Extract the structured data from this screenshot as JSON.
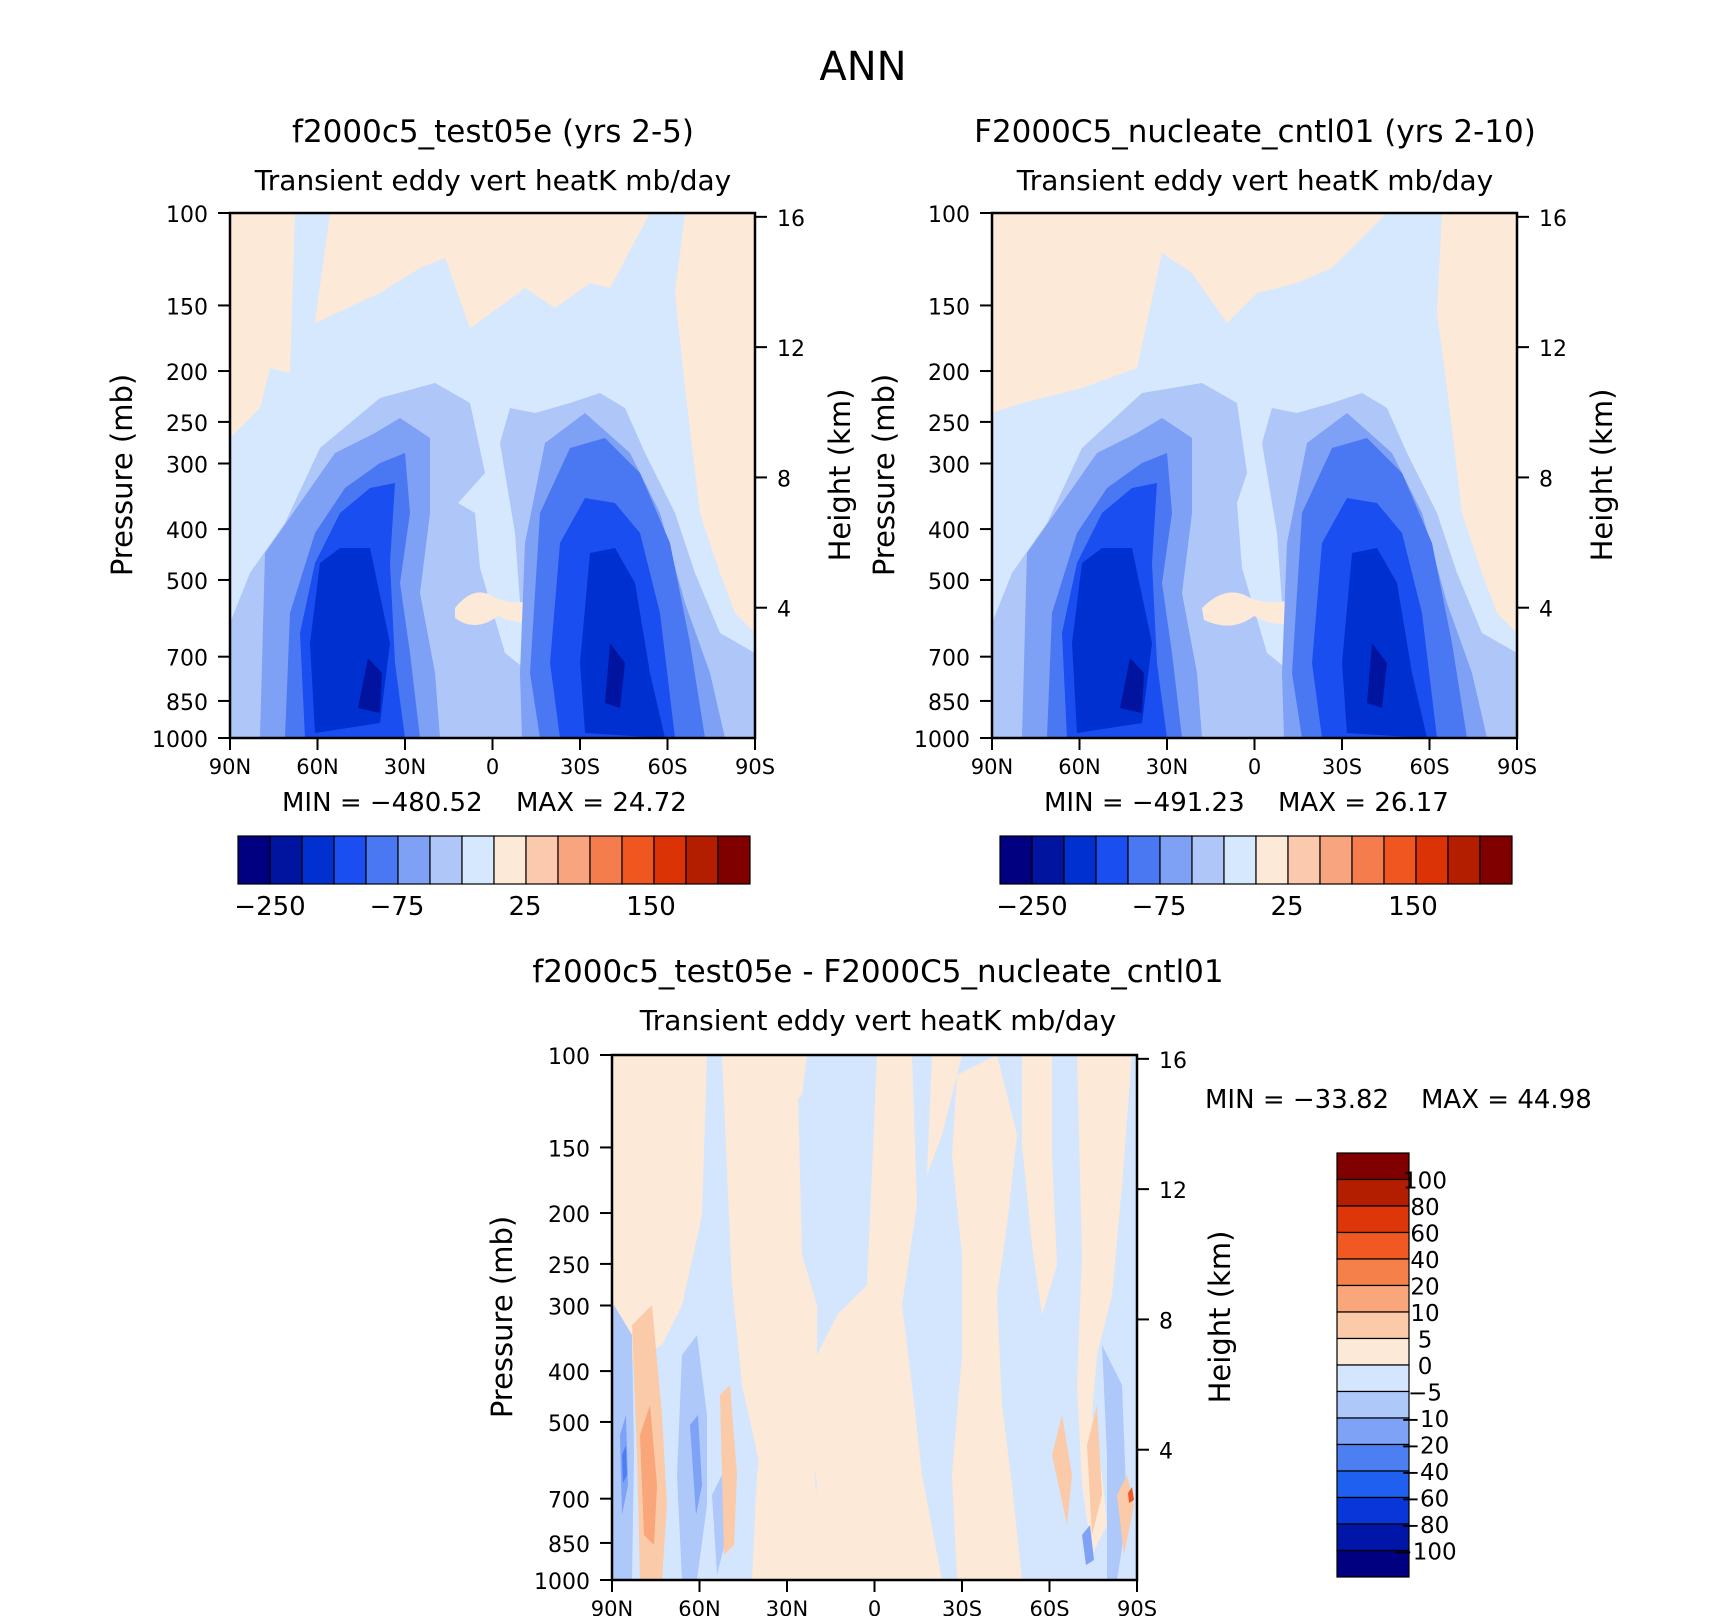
{
  "main_title": "ANN",
  "colors": {
    "blues": [
      "#000080",
      "#0014a0",
      "#0030d0",
      "#1a4ef0",
      "#4a78f2",
      "#7ea0f5",
      "#aec6f8",
      "#d6e8fd"
    ],
    "reds": [
      "#fde9d8",
      "#fbc9ae",
      "#f8a47e",
      "#f57d4d",
      "#f0561f",
      "#db3305",
      "#b31d00",
      "#800000"
    ],
    "diff_blues": [
      "#000080",
      "#0016a8",
      "#0836d8",
      "#2060f0",
      "#4c80f2",
      "#7ea2f6",
      "#aec8f9",
      "#d4e6fd"
    ],
    "diff_reds": [
      "#fde9d8",
      "#fbcaa8",
      "#f8a67a",
      "#f5804a",
      "#f05a22",
      "#dd3608",
      "#b41e00",
      "#800000"
    ]
  },
  "chart_data": [
    {
      "type": "contour",
      "title": "f2000c5_test05e (yrs 2-5)",
      "subtitle": "Transient eddy vert heatK mb/day",
      "ylabel": "Pressure (mb)",
      "ylabel_right": "Height (km)",
      "xticks": [
        "90N",
        "60N",
        "30N",
        "0",
        "30S",
        "60S",
        "90S"
      ],
      "yticks": [
        100,
        150,
        200,
        250,
        300,
        400,
        500,
        700,
        850,
        1000
      ],
      "yticks_right": [
        4,
        8,
        12,
        16
      ],
      "ylim": [
        1000,
        100
      ],
      "yscale": "log",
      "min_label": "MIN = −480.52",
      "max_label": "MAX =   24.72",
      "colorbar_labels": [
        "−250",
        "−75",
        "25",
        "150"
      ],
      "extrema": {
        "min": -480.52,
        "max": 24.72
      }
    },
    {
      "type": "contour",
      "title": "F2000C5_nucleate_cntl01 (yrs 2-10)",
      "subtitle": "Transient eddy vert heatK mb/day",
      "ylabel": "Pressure (mb)",
      "ylabel_right": "Height (km)",
      "xticks": [
        "90N",
        "60N",
        "30N",
        "0",
        "30S",
        "60S",
        "90S"
      ],
      "yticks": [
        100,
        150,
        200,
        250,
        300,
        400,
        500,
        700,
        850,
        1000
      ],
      "yticks_right": [
        4,
        8,
        12,
        16
      ],
      "ylim": [
        1000,
        100
      ],
      "yscale": "log",
      "min_label": "MIN = −491.23",
      "max_label": "MAX =   26.17",
      "colorbar_labels": [
        "−250",
        "−75",
        "25",
        "150"
      ],
      "extrema": {
        "min": -491.23,
        "max": 26.17
      }
    },
    {
      "type": "contour",
      "title": "f2000c5_test05e - F2000C5_nucleate_cntl01",
      "subtitle": "Transient eddy vert heatK mb/day",
      "ylabel": "Pressure (mb)",
      "ylabel_right": "Height (km)",
      "xticks": [
        "90N",
        "60N",
        "30N",
        "0",
        "30S",
        "60S",
        "90S"
      ],
      "yticks": [
        100,
        150,
        200,
        250,
        300,
        400,
        500,
        700,
        850,
        1000
      ],
      "yticks_right": [
        4,
        8,
        12,
        16
      ],
      "ylim": [
        1000,
        100
      ],
      "yscale": "log",
      "min_label": "MIN = −33.82",
      "max_label": "MAX =   44.98",
      "colorbar_labels": [
        "100",
        "80",
        "60",
        "40",
        "20",
        "10",
        "5",
        "0",
        "−5",
        "−10",
        "−20",
        "−40",
        "−60",
        "−80",
        "−100"
      ],
      "extrema": {
        "min": -33.82,
        "max": 44.98
      }
    }
  ]
}
